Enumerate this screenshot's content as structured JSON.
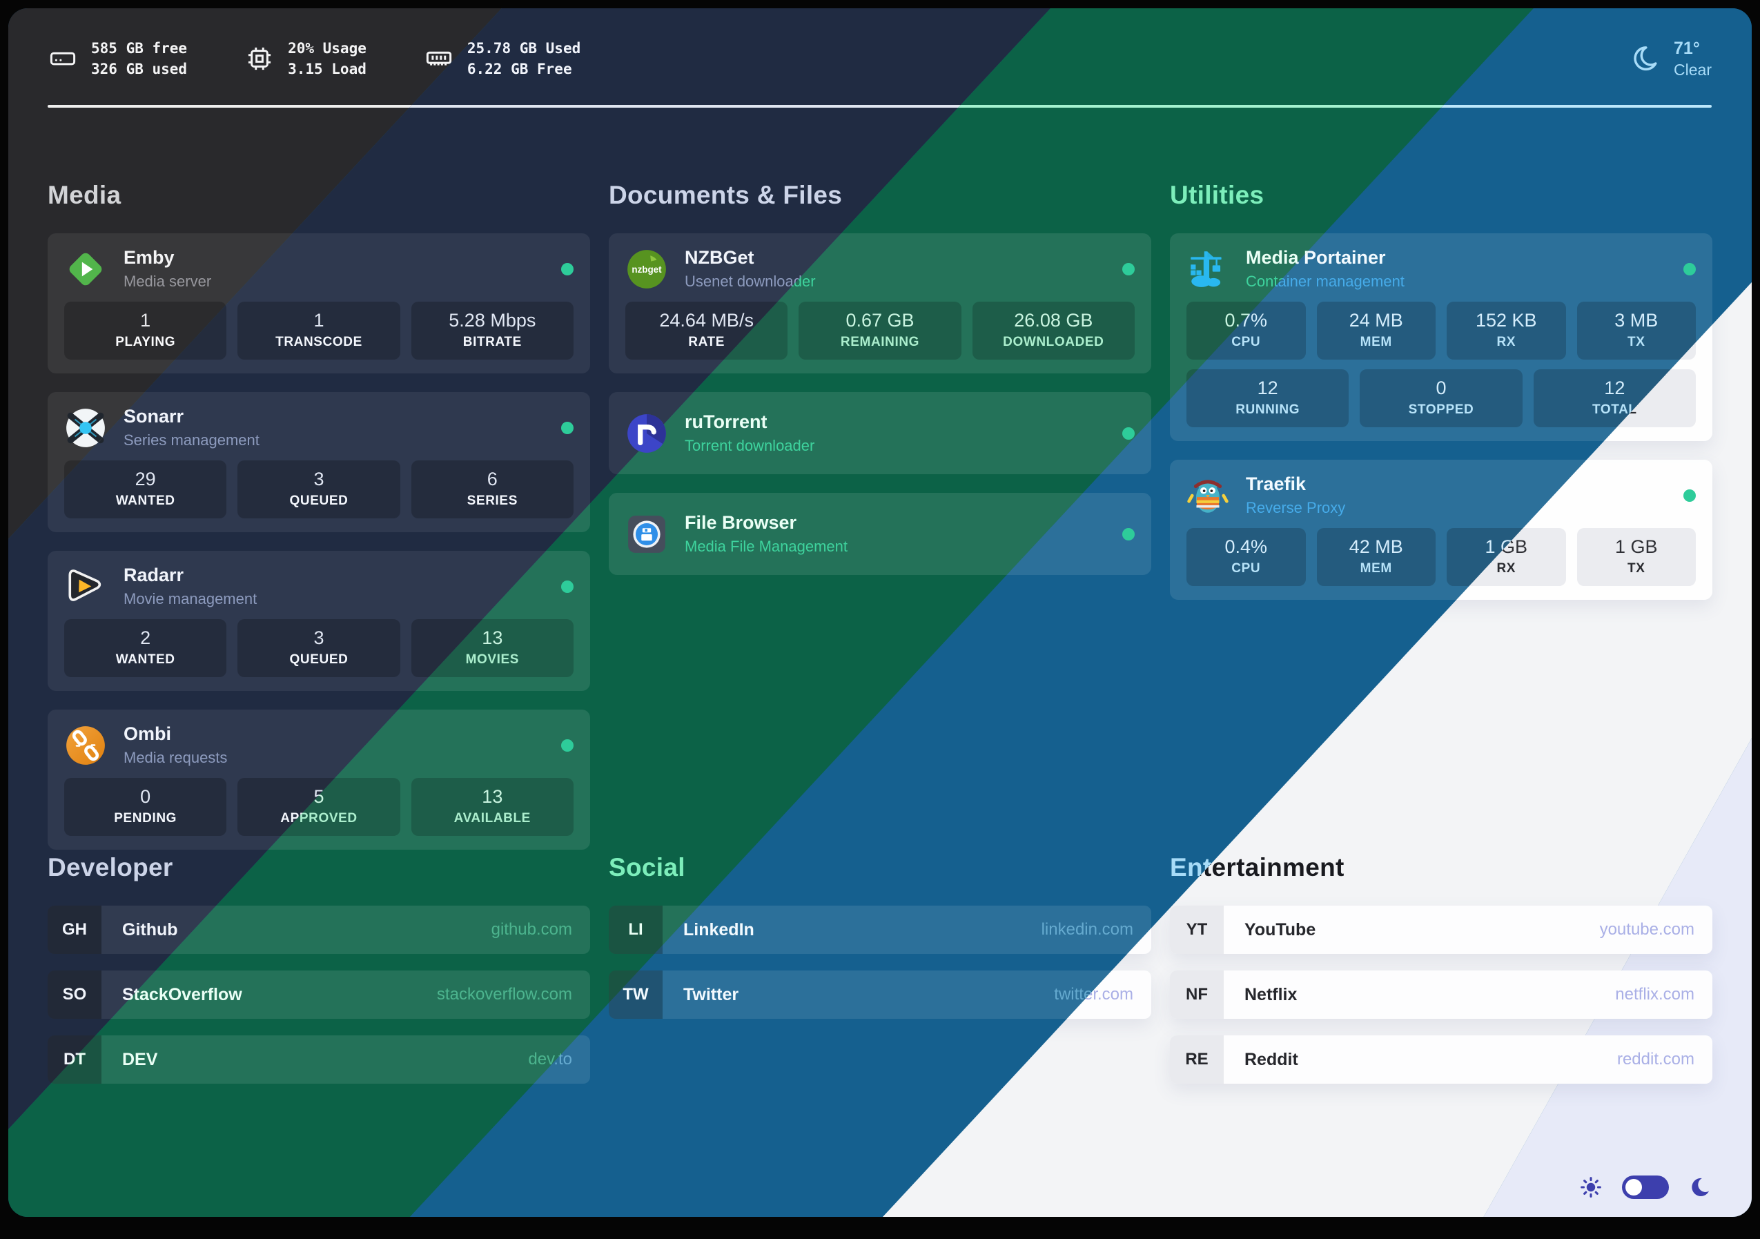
{
  "topbar": {
    "stats": [
      {
        "icon": "disk-icon",
        "lines": [
          "585 GB free",
          "326 GB used"
        ]
      },
      {
        "icon": "cpu-icon",
        "lines": [
          "20% Usage",
          "3.15 Load"
        ]
      },
      {
        "icon": "ram-icon",
        "lines": [
          "25.78 GB Used",
          "6.22 GB Free"
        ]
      }
    ],
    "weather": {
      "icon": "moon-icon",
      "temperature": "71°",
      "condition": "Clear"
    }
  },
  "service_sections": [
    {
      "title": "Media",
      "services": [
        {
          "name": "Emby",
          "description": "Media server",
          "icon": "emby-icon",
          "status": "online",
          "stats": [
            {
              "value": "1",
              "label": "PLAYING"
            },
            {
              "value": "1",
              "label": "TRANSCODE"
            },
            {
              "value": "5.28 Mbps",
              "label": "BITRATE"
            }
          ]
        },
        {
          "name": "Sonarr",
          "description": "Series management",
          "icon": "sonarr-icon",
          "status": "online",
          "stats": [
            {
              "value": "29",
              "label": "WANTED"
            },
            {
              "value": "3",
              "label": "QUEUED"
            },
            {
              "value": "6",
              "label": "SERIES"
            }
          ]
        },
        {
          "name": "Radarr",
          "description": "Movie management",
          "icon": "radarr-icon",
          "status": "online",
          "stats": [
            {
              "value": "2",
              "label": "WANTED"
            },
            {
              "value": "3",
              "label": "QUEUED"
            },
            {
              "value": "13",
              "label": "MOVIES"
            }
          ]
        },
        {
          "name": "Ombi",
          "description": "Media requests",
          "icon": "ombi-icon",
          "status": "online",
          "stats": [
            {
              "value": "0",
              "label": "PENDING"
            },
            {
              "value": "5",
              "label": "APPROVED"
            },
            {
              "value": "13",
              "label": "AVAILABLE"
            }
          ]
        }
      ]
    },
    {
      "title": "Documents & Files",
      "services": [
        {
          "name": "NZBGet",
          "description": "Usenet downloader",
          "icon": "nzbget-icon",
          "icon_text": "nzbget",
          "status": "online",
          "stats": [
            {
              "value": "24.64 MB/s",
              "label": "RATE"
            },
            {
              "value": "0.67 GB",
              "label": "REMAINING"
            },
            {
              "value": "26.08 GB",
              "label": "DOWNLOADED"
            }
          ]
        },
        {
          "name": "ruTorrent",
          "description": "Torrent downloader",
          "icon": "rutorrent-icon",
          "status": "online",
          "stats": []
        },
        {
          "name": "File Browser",
          "description": "Media File Management",
          "icon": "filebrowser-icon",
          "status": "online",
          "stats": []
        }
      ]
    },
    {
      "title": "Utilities",
      "services": [
        {
          "name": "Media Portainer",
          "description": "Container management",
          "icon": "portainer-icon",
          "status": "online",
          "stats": [
            {
              "value": "0.7%",
              "label": "CPU"
            },
            {
              "value": "24 MB",
              "label": "MEM"
            },
            {
              "value": "152 KB",
              "label": "RX"
            },
            {
              "value": "3 MB",
              "label": "TX"
            }
          ],
          "stats_row2": [
            {
              "value": "12",
              "label": "RUNNING"
            },
            {
              "value": "0",
              "label": "STOPPED"
            },
            {
              "value": "12",
              "label": "TOTAL"
            }
          ]
        },
        {
          "name": "Traefik",
          "description": "Reverse Proxy",
          "icon": "traefik-icon",
          "status": "online",
          "stats": [
            {
              "value": "0.4%",
              "label": "CPU"
            },
            {
              "value": "42 MB",
              "label": "MEM"
            },
            {
              "value": "1 GB",
              "label": "RX"
            },
            {
              "value": "1 GB",
              "label": "TX"
            }
          ]
        }
      ]
    }
  ],
  "bookmark_sections": [
    {
      "title": "Developer",
      "links": [
        {
          "abbr": "GH",
          "label": "Github",
          "url": "github.com"
        },
        {
          "abbr": "SO",
          "label": "StackOverflow",
          "url": "stackoverflow.com"
        },
        {
          "abbr": "DT",
          "label": "DEV",
          "url": "dev.to"
        }
      ]
    },
    {
      "title": "Social",
      "links": [
        {
          "abbr": "LI",
          "label": "LinkedIn",
          "url": "linkedin.com"
        },
        {
          "abbr": "TW",
          "label": "Twitter",
          "url": "twitter.com"
        }
      ]
    },
    {
      "title": "Entertainment",
      "links": [
        {
          "abbr": "YT",
          "label": "YouTube",
          "url": "youtube.com"
        },
        {
          "abbr": "NF",
          "label": "Netflix",
          "url": "netflix.com"
        },
        {
          "abbr": "RE",
          "label": "Reddit",
          "url": "reddit.com"
        }
      ]
    }
  ],
  "theme_switcher": {
    "icons": [
      "sun-icon",
      "theme-toggle",
      "moon-icon"
    ]
  },
  "colors": {
    "status": "#2ecc9a",
    "toggle": "#3d3fad",
    "stripes": {
      "charcoal": "#29292c",
      "navy": "#202b42",
      "green": "#0c6247",
      "blue": "#15608f",
      "white": "#f3f4f6",
      "lavender": "#e7eaf8"
    },
    "brands": {
      "emby": "#52b54b",
      "sonarr": "#35c5f4",
      "radarr": "#ffb827",
      "ombi": "#e8872b",
      "nzbget": "#579320",
      "rutorrent": "#3c45c8",
      "filebrowser": "#2f8fe8",
      "portainer": "#29b8f0",
      "traefik": "#46b2c8"
    }
  }
}
